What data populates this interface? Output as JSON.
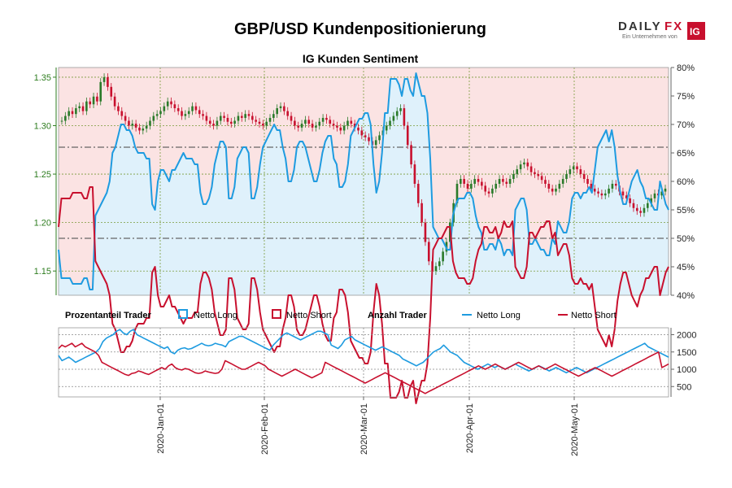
{
  "chart_data": [
    {
      "type": "candlestick+line",
      "title": "GBP/USD Kundenpositionierung",
      "subtitle": "IG Kunden Sentiment",
      "left_axis": {
        "ticks": [
          "1.35",
          "1.30",
          "1.25",
          "1.20",
          "1.15"
        ],
        "tick_values": [
          1.35,
          1.3,
          1.25,
          1.2,
          1.15
        ],
        "range": [
          1.125,
          1.36
        ]
      },
      "right_axis": {
        "ticks": [
          "80%",
          "75%",
          "70%",
          "65%",
          "60%",
          "55%",
          "50%",
          "45%",
          "40%"
        ],
        "tick_values": [
          80,
          75,
          70,
          65,
          60,
          55,
          50,
          45,
          40
        ],
        "range": [
          40,
          80
        ]
      },
      "reference_lines": [
        66,
        50
      ],
      "net_long_pct": [
        48,
        43,
        43,
        43,
        43,
        42,
        42,
        42,
        42,
        43,
        43,
        41,
        41,
        54,
        55,
        56,
        57,
        58,
        60,
        65,
        66,
        68,
        70,
        70,
        69,
        69,
        68,
        66,
        65,
        65,
        65,
        64,
        64,
        56,
        55,
        60,
        62,
        62,
        61,
        60,
        62,
        62,
        63,
        64,
        65,
        64,
        64,
        64,
        63,
        63,
        58,
        56,
        56,
        57,
        59,
        63,
        65,
        67,
        67,
        66,
        57,
        57,
        59,
        64,
        65,
        66,
        66,
        65,
        57,
        57,
        59,
        63,
        66,
        67,
        68,
        69,
        70,
        69,
        69,
        66,
        64,
        60,
        60,
        62,
        66,
        67,
        67,
        66,
        64,
        62,
        60,
        60,
        62,
        65,
        67,
        68,
        68,
        64,
        63,
        59,
        59,
        60,
        63,
        68,
        69,
        70,
        71,
        71,
        72,
        72,
        70,
        63,
        58,
        60,
        65,
        72,
        72,
        78,
        78,
        78,
        77,
        75,
        78,
        78,
        76,
        75,
        79,
        77,
        75,
        75,
        72,
        64,
        52,
        51,
        50,
        50,
        49,
        48,
        48,
        54,
        56,
        57,
        57,
        57,
        58,
        58,
        57,
        54,
        52,
        51,
        48,
        48,
        49,
        49,
        48,
        50,
        49,
        47,
        48,
        48,
        47,
        55,
        56,
        57,
        57,
        55,
        49,
        49,
        50,
        49,
        48,
        48,
        47,
        47,
        50,
        49,
        53,
        52,
        51,
        51,
        53,
        57,
        58,
        58,
        57,
        58,
        58,
        59,
        58,
        62,
        66,
        67,
        68,
        69,
        67,
        69,
        66,
        61,
        58,
        56,
        56,
        58,
        60,
        61,
        62,
        60,
        59,
        57,
        57,
        56,
        55,
        55,
        60,
        58,
        56,
        55
      ],
      "net_short_pct": [
        52,
        57,
        57,
        57,
        57,
        58,
        58,
        58,
        58,
        57,
        57,
        59,
        59,
        46,
        45,
        44,
        43,
        42,
        40,
        35,
        34,
        32,
        30,
        30,
        31,
        31,
        32,
        34,
        35,
        35,
        35,
        36,
        36,
        44,
        45,
        40,
        38,
        38,
        39,
        40,
        38,
        38,
        37,
        36,
        35,
        36,
        36,
        36,
        37,
        37,
        42,
        44,
        44,
        43,
        41,
        37,
        35,
        33,
        33,
        34,
        43,
        43,
        41,
        36,
        35,
        34,
        34,
        35,
        43,
        43,
        41,
        37,
        34,
        33,
        32,
        31,
        30,
        31,
        31,
        34,
        36,
        40,
        40,
        38,
        34,
        33,
        33,
        34,
        36,
        38,
        40,
        40,
        38,
        35,
        33,
        32,
        32,
        36,
        37,
        41,
        41,
        40,
        37,
        32,
        31,
        30,
        29,
        29,
        28,
        28,
        30,
        37,
        42,
        40,
        35,
        28,
        28,
        22,
        22,
        22,
        23,
        25,
        22,
        22,
        24,
        25,
        21,
        23,
        25,
        25,
        28,
        36,
        48,
        49,
        50,
        50,
        51,
        52,
        52,
        46,
        44,
        43,
        43,
        43,
        42,
        42,
        43,
        46,
        48,
        49,
        52,
        52,
        51,
        51,
        52,
        50,
        51,
        53,
        52,
        52,
        53,
        45,
        44,
        43,
        43,
        45,
        51,
        51,
        50,
        51,
        52,
        52,
        53,
        53,
        50,
        51,
        47,
        48,
        49,
        49,
        47,
        43,
        42,
        42,
        43,
        42,
        42,
        41,
        42,
        38,
        34,
        33,
        32,
        31,
        33,
        31,
        34,
        39,
        42,
        44,
        44,
        42,
        40,
        39,
        38,
        40,
        41,
        43,
        43,
        44,
        45,
        45,
        40,
        42,
        44,
        45
      ],
      "candles": [
        1.305,
        1.31,
        1.315,
        1.312,
        1.318,
        1.32,
        1.315,
        1.325,
        1.322,
        1.33,
        1.325,
        1.345,
        1.35,
        1.34,
        1.33,
        1.32,
        1.315,
        1.31,
        1.305,
        1.3,
        1.302,
        1.298,
        1.295,
        1.297,
        1.3,
        1.305,
        1.31,
        1.312,
        1.315,
        1.32,
        1.325,
        1.322,
        1.318,
        1.315,
        1.31,
        1.312,
        1.315,
        1.32,
        1.316,
        1.312,
        1.31,
        1.305,
        1.302,
        1.3,
        1.305,
        1.31,
        1.308,
        1.304,
        1.302,
        1.305,
        1.31,
        1.308,
        1.312,
        1.31,
        1.306,
        1.304,
        1.302,
        1.3,
        1.304,
        1.308,
        1.312,
        1.318,
        1.32,
        1.315,
        1.31,
        1.305,
        1.3,
        1.298,
        1.302,
        1.306,
        1.302,
        1.298,
        1.3,
        1.304,
        1.308,
        1.306,
        1.302,
        1.3,
        1.298,
        1.295,
        1.3,
        1.305,
        1.302,
        1.298,
        1.295,
        1.29,
        1.288,
        1.284,
        1.28,
        1.285,
        1.29,
        1.295,
        1.3,
        1.305,
        1.31,
        1.315,
        1.318,
        1.3,
        1.28,
        1.26,
        1.24,
        1.22,
        1.2,
        1.18,
        1.16,
        1.15,
        1.155,
        1.16,
        1.17,
        1.18,
        1.2,
        1.22,
        1.24,
        1.245,
        1.24,
        1.235,
        1.24,
        1.245,
        1.242,
        1.238,
        1.232,
        1.23,
        1.235,
        1.24,
        1.245,
        1.242,
        1.24,
        1.245,
        1.25,
        1.255,
        1.26,
        1.262,
        1.258,
        1.252,
        1.25,
        1.248,
        1.244,
        1.24,
        1.235,
        1.232,
        1.235,
        1.24,
        1.245,
        1.25,
        1.255,
        1.258,
        1.255,
        1.25,
        1.245,
        1.24,
        1.235,
        1.232,
        1.23,
        1.228,
        1.23,
        1.235,
        1.24,
        1.238,
        1.232,
        1.228,
        1.225,
        1.22,
        1.215,
        1.212,
        1.21,
        1.215,
        1.22,
        1.225,
        1.23,
        1.228,
        1.232,
        1.235
      ]
    },
    {
      "type": "line",
      "right_axis": {
        "ticks": [
          "2000",
          "1500",
          "1000",
          "500"
        ],
        "tick_values": [
          2000,
          1500,
          1000,
          500
        ],
        "range": [
          200,
          2200
        ]
      },
      "x_labels": [
        "2020-Jan-01",
        "2020-Feb-01",
        "2020-Mar-01",
        "2020-Apr-01",
        "2020-May-01"
      ],
      "net_long_count": [
        1400,
        1250,
        1300,
        1350,
        1280,
        1200,
        1250,
        1300,
        1350,
        1400,
        1450,
        1500,
        1600,
        1800,
        1900,
        1950,
        2000,
        2100,
        2150,
        2050,
        2000,
        2100,
        2150,
        2000,
        1950,
        1900,
        1850,
        1800,
        1750,
        1700,
        1650,
        1600,
        1650,
        1500,
        1450,
        1550,
        1600,
        1620,
        1580,
        1600,
        1650,
        1700,
        1750,
        1700,
        1680,
        1700,
        1750,
        1720,
        1700,
        1650,
        1800,
        1850,
        1900,
        1950,
        1950,
        1900,
        1850,
        1800,
        1750,
        1700,
        1650,
        1600,
        1550,
        1700,
        1800,
        1900,
        2000,
        2050,
        2000,
        1950,
        1900,
        1850,
        1900,
        1950,
        2000,
        2050,
        2100,
        2100,
        2050,
        2000,
        1700,
        1650,
        1600,
        1700,
        1850,
        1900,
        1950,
        1850,
        1800,
        1750,
        1700,
        1650,
        1600,
        1550,
        1600,
        1650,
        1600,
        1550,
        1500,
        1450,
        1400,
        1300,
        1250,
        1200,
        1150,
        1100,
        1150,
        1200,
        1300,
        1400,
        1500,
        1550,
        1600,
        1700,
        1600,
        1500,
        1450,
        1400,
        1300,
        1200,
        1150,
        1100,
        1050,
        1000,
        1050,
        1100,
        1150,
        1100,
        1050,
        1100,
        1050,
        1000,
        1050,
        1100,
        1150,
        1100,
        1050,
        1000,
        950,
        1000,
        1050,
        1100,
        1050,
        1000,
        950,
        1000,
        1050,
        1000,
        950,
        900,
        950,
        1000,
        1050,
        1000,
        950,
        900,
        950,
        1000,
        1050,
        1100,
        1150,
        1200,
        1250,
        1300,
        1350,
        1400,
        1450,
        1500,
        1550,
        1600,
        1650,
        1700,
        1750,
        1650,
        1600,
        1550,
        1500,
        1450,
        1400,
        1350
      ],
      "net_short_count": [
        1600,
        1700,
        1650,
        1700,
        1750,
        1650,
        1700,
        1750,
        1650,
        1600,
        1550,
        1500,
        1400,
        1200,
        1150,
        1100,
        1050,
        1000,
        950,
        900,
        850,
        820,
        880,
        900,
        950,
        920,
        880,
        850,
        900,
        950,
        1000,
        1050,
        1000,
        1100,
        1150,
        1050,
        1000,
        980,
        1020,
        1000,
        950,
        900,
        880,
        900,
        950,
        920,
        900,
        880,
        900,
        1000,
        1250,
        1200,
        1150,
        1100,
        1050,
        1000,
        1000,
        1050,
        1100,
        1150,
        1200,
        1150,
        1100,
        1000,
        950,
        900,
        850,
        800,
        850,
        900,
        950,
        1000,
        950,
        900,
        850,
        800,
        750,
        800,
        850,
        900,
        1200,
        1150,
        1100,
        1050,
        1000,
        950,
        900,
        850,
        800,
        750,
        700,
        650,
        600,
        650,
        700,
        750,
        800,
        850,
        900,
        850,
        800,
        750,
        700,
        650,
        600,
        550,
        500,
        450,
        400,
        350,
        300,
        350,
        400,
        450,
        500,
        550,
        600,
        650,
        700,
        750,
        800,
        850,
        900,
        950,
        1000,
        1050,
        1100,
        1050,
        1000,
        1050,
        1100,
        1150,
        1100,
        1050,
        1000,
        1050,
        1100,
        1150,
        1200,
        1150,
        1100,
        1050,
        1000,
        1050,
        1100,
        1050,
        1000,
        1050,
        1100,
        1150,
        1100,
        1050,
        1000,
        950,
        900,
        850,
        800,
        850,
        900,
        950,
        1000,
        1050,
        1000,
        950,
        900,
        850,
        800,
        850,
        900,
        950,
        1000,
        1050,
        1100,
        1150,
        1200,
        1250,
        1300,
        1350,
        1400,
        1450,
        1500,
        1050,
        1100,
        1150
      ]
    }
  ],
  "legend": {
    "pct_header": "Prozentanteil Trader",
    "pct_long": "Netto Long",
    "pct_short": "Netto Short",
    "count_header": "Anzahl Trader",
    "count_long": "Netto Long",
    "count_short": "Netto Short"
  },
  "logo": {
    "text_a": "DAILY",
    "text_b": "FX",
    "sub": "Ein Unternehmen von",
    "ig": "IG"
  },
  "colors": {
    "long": "#1e9be0",
    "short": "#c8102e",
    "long_fill": "#dff1fb",
    "short_fill": "#fbe3e3",
    "candle_up": "#2a7a2a",
    "candle_down": "#c8102e"
  }
}
